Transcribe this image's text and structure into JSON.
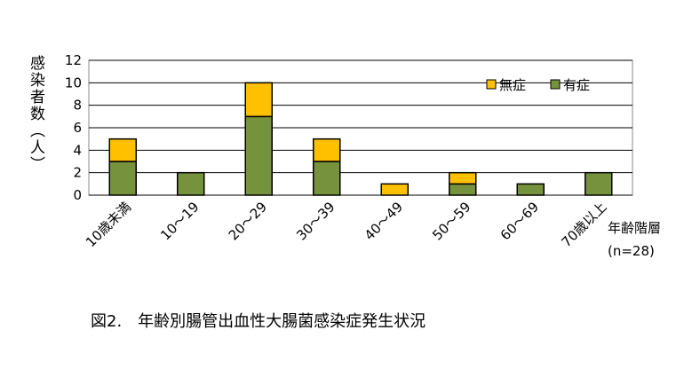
{
  "chart_data": {
    "type": "stacked_bar",
    "y_label": "感染者数（人）",
    "x_label": [
      "年齢階層",
      "(n=28)"
    ],
    "caption": "図2.　年齢別腸管出血性大腸菌感染症発生状況",
    "categories": [
      "10歳未満",
      "10～19",
      "20～29",
      "30～39",
      "40～49",
      "50～59",
      "60～69",
      "70歳以上"
    ],
    "series": [
      {
        "name": "有症",
        "color": "#76923c",
        "values": [
          3,
          2,
          7,
          3,
          0,
          1,
          1,
          2
        ]
      },
      {
        "name": "無症",
        "color": "#ffc000",
        "values": [
          2,
          0,
          3,
          2,
          1,
          1,
          0,
          0
        ]
      }
    ],
    "ylim": [
      0,
      12
    ],
    "yticks": [
      0,
      2,
      4,
      6,
      8,
      10,
      12
    ],
    "grid": true,
    "legend": "top-right"
  }
}
